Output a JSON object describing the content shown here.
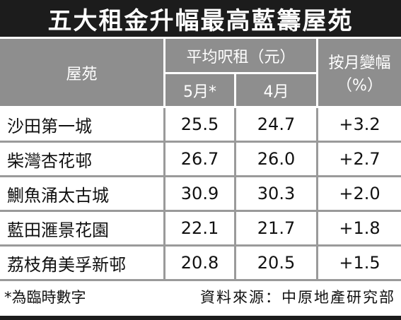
{
  "title": "五大租金升幅最高藍籌屋苑",
  "table": {
    "header": {
      "estate": "屋苑",
      "avg_rent": "平均呎租（元）",
      "may": "5月*",
      "apr": "4月",
      "change": [
        "按月變幅",
        "（%）"
      ]
    },
    "rows": [
      [
        "沙田第一城",
        "25.5",
        "24.7",
        "+3.2"
      ],
      [
        "柴灣杏花邨",
        "26.7",
        "26.0",
        "+2.7"
      ],
      [
        "鰂魚涌太古城",
        "30.9",
        "30.3",
        "+2.0"
      ],
      [
        "藍田滙景花園",
        "22.1",
        "21.7",
        "+1.8"
      ],
      [
        "荔枝角美孚新邨",
        "20.8",
        "20.5",
        "+1.5"
      ]
    ]
  },
  "footer": {
    "note": "*為臨時數字",
    "source": "資料來源：中原地產研究部"
  }
}
